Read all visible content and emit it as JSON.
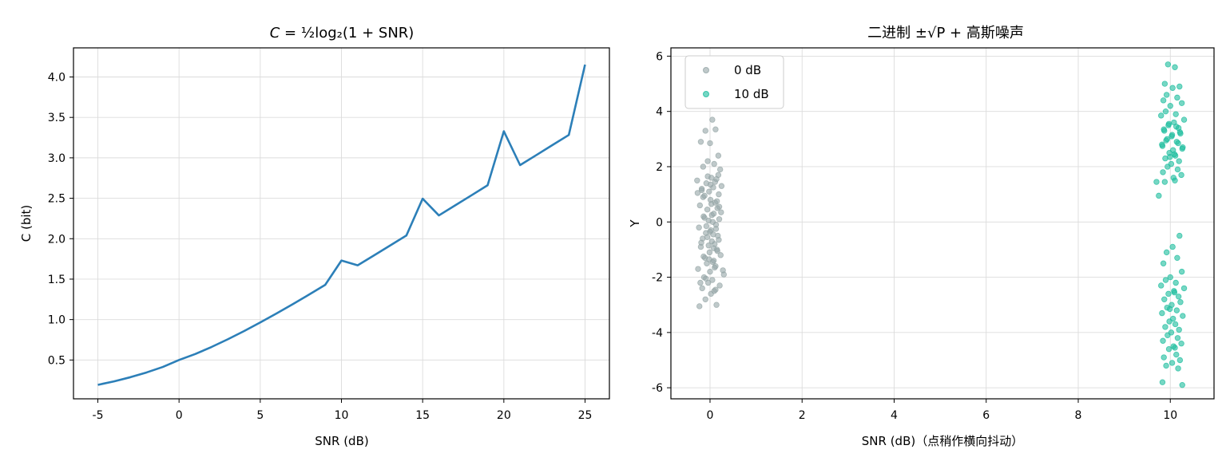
{
  "chart_data": [
    {
      "type": "line",
      "title": "C = ½log₂(1 + SNR)",
      "xlabel": "SNR (dB)",
      "ylabel": "C (bit)",
      "xlim": [
        -6.5,
        26.5
      ],
      "ylim": [
        0.02,
        4.36
      ],
      "grid": true,
      "xticks": [
        -5,
        0,
        5,
        10,
        15,
        20,
        25
      ],
      "yticks": [
        0.5,
        1.0,
        1.5,
        2.0,
        2.5,
        3.0,
        3.5,
        4.0
      ],
      "ytick_labels": [
        "0.5",
        "1.0",
        "1.5",
        "2.0",
        "2.5",
        "3.0",
        "3.5",
        "4.0"
      ],
      "series": [
        {
          "color": "#2c7fb8",
          "x": [
            -5,
            -4,
            -3,
            -2,
            -1,
            0,
            1,
            2,
            3,
            4,
            5,
            6,
            7,
            8,
            9,
            10,
            11,
            12,
            13,
            14,
            15,
            16,
            17,
            18,
            19,
            20,
            21,
            22,
            23,
            24,
            25
          ],
          "y": [
            0.193,
            0.236,
            0.287,
            0.346,
            0.414,
            0.5,
            0.574,
            0.661,
            0.756,
            0.857,
            0.964,
            1.075,
            1.19,
            1.308,
            1.429,
            1.73,
            1.671,
            1.793,
            1.916,
            2.04,
            2.495,
            2.288,
            2.412,
            2.536,
            2.661,
            3.329,
            2.91,
            3.034,
            3.159,
            3.283,
            4.153
          ]
        }
      ]
    },
    {
      "type": "scatter",
      "title": "二进制 ±√P + 高斯噪声",
      "xlabel": "SNR (dB)（点稍作横向抖动）",
      "ylabel": "Y",
      "xlim": [
        -0.85,
        10.95
      ],
      "ylim": [
        -6.4,
        6.3
      ],
      "grid": true,
      "xticks": [
        0,
        2,
        4,
        6,
        8,
        10
      ],
      "yticks": [
        -6,
        -4,
        -2,
        0,
        2,
        4,
        6
      ],
      "ytick_labels": [
        "-6",
        "-4",
        "-2",
        "0",
        "2",
        "4",
        "6"
      ],
      "legend_position": "top-left",
      "series": [
        {
          "name": "0 dB",
          "color": "#95a5a6",
          "x": [
            0.05,
            -0.1,
            0.12,
            -0.2,
            0.0,
            0.18,
            -0.05,
            0.09,
            -0.15,
            0.22,
            -0.28,
            0.03,
            0.14,
            -0.08,
            0.25,
            -0.18,
            0.07,
            -0.02,
            0.19,
            -0.12,
            0.01,
            0.11,
            -0.22,
            0.16,
            -0.06,
            0.08,
            -0.14,
            0.2,
            -0.03,
            0.06,
            0.13,
            -0.24,
            0.02,
            -0.09,
            0.17,
            -0.16,
            0.04,
            0.1,
            -0.2,
            0.15,
            -0.01,
            0.23,
            -0.11,
            0.08,
            -0.07,
            0.12,
            -0.26,
            0.0,
            0.3,
            -0.13,
            0.05,
            -0.04,
            0.21,
            -0.17,
            0.09,
            0.02,
            -0.1,
            0.14,
            -0.21,
            0.06,
            0.18,
            -0.05,
            0.11,
            -0.15,
            0.03,
            0.24,
            -0.08,
            0.07,
            -0.19,
            0.16,
            -0.02,
            0.1,
            -0.12,
            0.2,
            -0.27,
            0.01,
            0.13,
            -0.06,
            0.08,
            -0.14,
            0.28,
            -0.09,
            0.04,
            0.15,
            -0.18,
            0.0,
            0.19,
            -0.03,
            0.12,
            -0.23
          ],
          "y": [
            3.7,
            3.3,
            3.35,
            2.9,
            2.85,
            2.4,
            2.2,
            2.1,
            2.0,
            1.9,
            1.5,
            1.6,
            1.55,
            1.4,
            1.3,
            1.2,
            1.25,
            1.1,
            1.0,
            0.95,
            0.8,
            0.7,
            0.6,
            0.5,
            0.45,
            0.3,
            0.2,
            0.1,
            0.05,
            0.0,
            -0.1,
            -0.2,
            -0.3,
            -0.4,
            -0.5,
            -0.6,
            -0.7,
            -0.8,
            -0.9,
            -1.0,
            -1.1,
            -1.2,
            -1.3,
            -1.4,
            -1.5,
            -1.6,
            -1.7,
            -1.8,
            -1.9,
            -2.0,
            -2.1,
            -2.2,
            -2.3,
            -2.4,
            -2.5,
            -2.6,
            -2.8,
            -3.0,
            -2.2,
            -1.45,
            1.7,
            1.65,
            1.45,
            0.9,
            0.65,
            0.35,
            -0.15,
            -0.45,
            -0.75,
            -1.05,
            -1.35,
            -1.65,
            0.15,
            0.55,
            1.05,
            1.35,
            -0.25,
            -0.55,
            -0.95,
            -1.25,
            -1.75,
            -2.05,
            0.25,
            0.75,
            1.15,
            -0.35,
            -0.65,
            -0.85,
            -2.45,
            -3.05
          ],
          "opacity": 0.6
        },
        {
          "name": "10 dB",
          "color": "#1abc9c",
          "x": [
            9.95,
            10.1,
            9.88,
            10.2,
            10.05,
            9.92,
            10.15,
            9.85,
            10.25,
            10.0,
            9.9,
            10.12,
            9.8,
            10.3,
            10.08,
            9.96,
            10.18,
            9.87,
            10.22,
            10.03,
            9.93,
            10.14,
            9.82,
            10.27,
            10.06,
            9.98,
            10.11,
            9.89,
            10.19,
            10.02,
            9.94,
            10.16,
            9.84,
            10.24,
            10.07,
            9.97,
            10.13,
            9.86,
            10.21,
            10.04,
            9.91,
            10.17,
            9.83,
            10.26,
            10.09,
            9.99,
            10.1,
            9.88,
            9.7,
            9.75,
            10.2,
            10.05,
            9.92,
            10.15,
            9.85,
            10.25,
            10.0,
            9.9,
            10.12,
            9.8,
            10.3,
            10.08,
            9.96,
            10.18,
            9.87,
            10.22,
            10.03,
            9.93,
            10.14,
            9.82,
            10.27,
            10.06,
            9.98,
            10.11,
            9.89,
            10.19,
            10.02,
            9.94,
            10.16,
            9.84,
            10.24,
            10.07,
            9.97,
            10.13,
            9.86,
            10.21,
            10.04,
            9.91,
            10.17,
            9.83,
            10.26,
            10.09,
            9.99,
            10.1
          ],
          "y": [
            5.7,
            5.6,
            5.0,
            4.9,
            4.85,
            4.6,
            4.5,
            4.4,
            4.3,
            4.2,
            4.0,
            3.9,
            3.85,
            3.7,
            3.6,
            3.5,
            3.4,
            3.3,
            3.2,
            3.1,
            3.0,
            2.9,
            2.8,
            2.7,
            2.6,
            2.5,
            2.4,
            2.3,
            2.2,
            2.1,
            2.0,
            1.9,
            1.8,
            1.7,
            1.6,
            3.55,
            3.45,
            3.35,
            3.25,
            3.15,
            2.95,
            2.85,
            2.75,
            2.65,
            2.45,
            2.35,
            1.5,
            1.45,
            1.45,
            0.95,
            -0.5,
            -0.9,
            -1.1,
            -1.3,
            -1.5,
            -1.8,
            -2.0,
            -2.1,
            -2.2,
            -2.3,
            -2.4,
            -2.5,
            -2.6,
            -2.7,
            -2.8,
            -2.9,
            -3.0,
            -3.1,
            -3.2,
            -3.3,
            -3.4,
            -3.5,
            -3.6,
            -3.7,
            -3.8,
            -3.9,
            -4.0,
            -4.1,
            -4.2,
            -4.3,
            -4.4,
            -4.5,
            -4.6,
            -4.8,
            -4.9,
            -5.0,
            -5.1,
            -5.2,
            -5.3,
            -5.8,
            -5.9,
            -2.55,
            -3.15,
            -4.55
          ],
          "opacity": 0.6
        }
      ]
    }
  ]
}
